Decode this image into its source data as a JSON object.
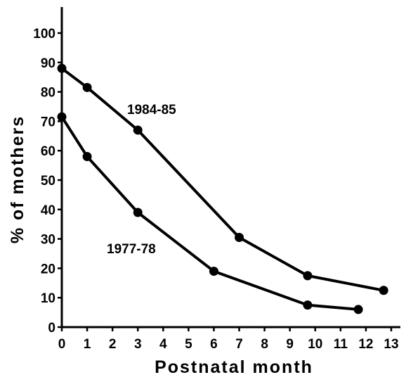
{
  "chart_data": {
    "type": "line",
    "title": "",
    "xlabel": "Postnatal month",
    "ylabel": "% of mothers",
    "xlim": [
      0,
      13
    ],
    "ylim": [
      0,
      100
    ],
    "x_ticks": [
      0,
      1,
      2,
      3,
      4,
      5,
      6,
      7,
      8,
      9,
      10,
      11,
      12,
      13
    ],
    "y_ticks": [
      0,
      10,
      20,
      30,
      40,
      50,
      60,
      70,
      80,
      90,
      100
    ],
    "grid": false,
    "legend": "none",
    "series": [
      {
        "name": "1984-85",
        "color": "#000000",
        "x": [
          0,
          1,
          3,
          7,
          9.7,
          12.7
        ],
        "y": [
          88,
          81.5,
          67,
          30.5,
          17.5,
          12.5
        ]
      },
      {
        "name": "1977-78",
        "color": "#000000",
        "x": [
          0,
          1,
          3,
          6,
          9.7,
          11.7
        ],
        "y": [
          71.5,
          58,
          39,
          19,
          7.5,
          6
        ]
      }
    ]
  }
}
